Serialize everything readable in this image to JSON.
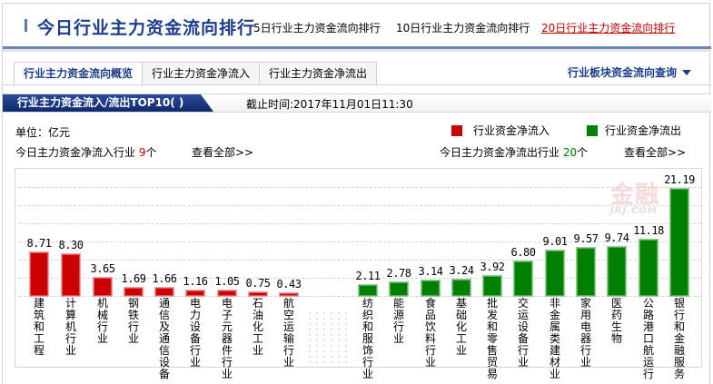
{
  "header": {
    "title": "今日行业主力资金流向排行",
    "links": [
      {
        "label": "5日行业主力资金流向排行",
        "active": false
      },
      {
        "label": "10日行业主力资金流向排行",
        "active": false
      },
      {
        "label": "20日行业主力资金流向排行",
        "active": true
      }
    ]
  },
  "tabs": [
    {
      "label": "行业主力资金流向概览",
      "active": true
    },
    {
      "label": "行业主力资金净流入",
      "active": false
    },
    {
      "label": "行业主力资金净流出",
      "active": false
    }
  ],
  "query_dropdown": {
    "label": "行业板块资金流向查询"
  },
  "subbar": {
    "label": "行业主力资金流入/流出TOP10( )",
    "time": "截止时间:2017年11月01日11:30"
  },
  "unit": "单位：亿元",
  "inflow_summary": {
    "prefix": "今日主力资金净流入行业 ",
    "count": "9",
    "suffix": "个",
    "view_all": "查看全部>>"
  },
  "outflow_summary": {
    "prefix": "今日主力资金净流出行业 ",
    "count": "20",
    "suffix": "个",
    "view_all": "查看全部>>"
  },
  "legend": [
    {
      "label": "行业资金净流入",
      "color": "#cc0000"
    },
    {
      "label": "行业资金净流出",
      "color": "#008000"
    }
  ],
  "watermark": {
    "text": "金融",
    "sub": "JRJ.COM"
  },
  "colors": {
    "inflow": "#cc0000",
    "outflow": "#008000",
    "brand": "#1a3c8a",
    "active_link": "#c00000"
  },
  "chart_data": {
    "type": "bar",
    "title": "行业主力资金流入/流出TOP10",
    "xlabel": "",
    "ylabel": "亿元",
    "ylim": [
      0,
      22
    ],
    "grid": true,
    "legend_position": "top-right",
    "series": [
      {
        "name": "行业资金净流入",
        "color": "#cc0000",
        "categories": [
          "建筑和工程",
          "计算机行业",
          "机械行业",
          "钢铁行业",
          "通信及通信设备",
          "电力设备行业",
          "电子元器件行业",
          "石油化工业",
          "航空运输行业"
        ],
        "values": [
          8.71,
          8.3,
          3.65,
          1.69,
          1.66,
          1.16,
          1.05,
          0.75,
          0.43
        ]
      },
      {
        "name": "行业资金净流出",
        "color": "#008000",
        "categories": [
          "纺织和服饰行业",
          "能源行业",
          "食品饮料行业",
          "基础化工业",
          "批发和零售贸易",
          "交运设备行业",
          "非金属类建材业",
          "家用电器行业",
          "医药生物",
          "公路港口航运行",
          "银行和金融服务"
        ],
        "values": [
          2.11,
          2.78,
          3.14,
          3.24,
          3.92,
          6.8,
          9.01,
          9.57,
          9.74,
          11.18,
          21.19
        ]
      }
    ]
  }
}
